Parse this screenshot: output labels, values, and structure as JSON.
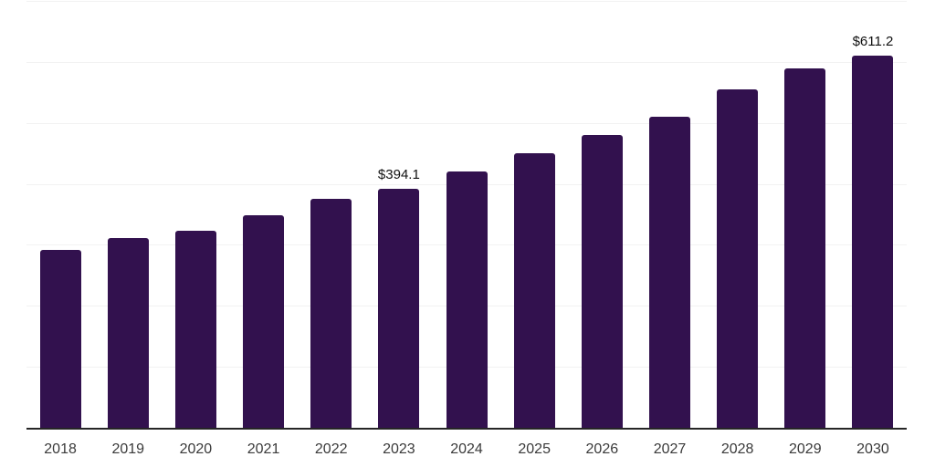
{
  "chart_data": {
    "type": "bar",
    "title": "",
    "xlabel": "",
    "ylabel": "",
    "categories": [
      "2018",
      "2019",
      "2020",
      "2021",
      "2022",
      "2023",
      "2024",
      "2025",
      "2026",
      "2027",
      "2028",
      "2029",
      "2030"
    ],
    "values": [
      293,
      312,
      325,
      350,
      377,
      394.1,
      422,
      452,
      481,
      512,
      556,
      591,
      611.2
    ],
    "data_labels": {
      "2023": "$394.1",
      "2030": "$611.2"
    },
    "ylim": [
      0,
      700
    ],
    "gridline_interval": 100,
    "grid": true,
    "legend": false
  },
  "colors": {
    "bar": "#32114E",
    "gridline": "#F2F2F2",
    "axis_line": "#262626",
    "tick_label": "#3A3A3A",
    "data_label": "#111111",
    "background": "#FFFFFF"
  }
}
